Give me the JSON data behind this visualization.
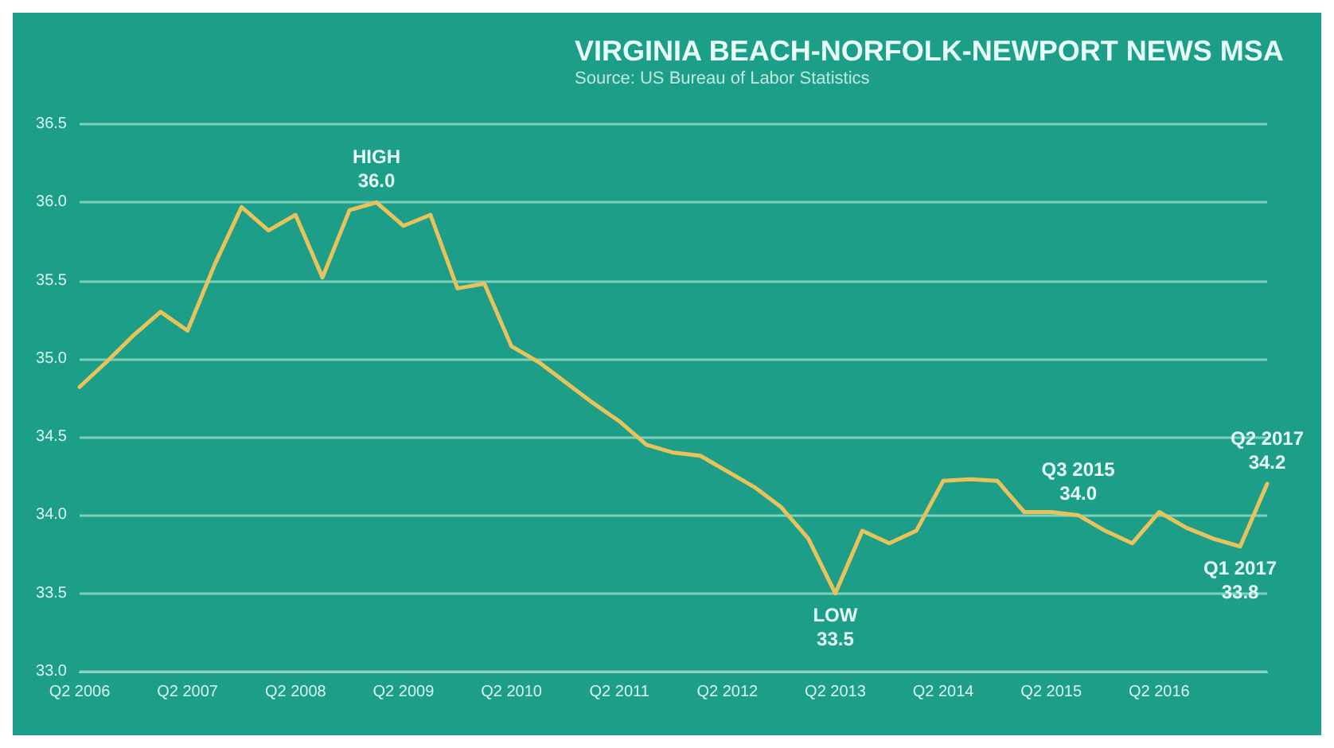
{
  "chart_data": {
    "type": "line",
    "title": "VIRGINIA BEACH-NORFOLK-NEWPORT NEWS MSA",
    "subtitle": "Source: US Bureau of Labor Statistics",
    "categories": [
      "Q2 2006",
      null,
      null,
      null,
      "Q2 2007",
      null,
      null,
      null,
      "Q2 2008",
      null,
      null,
      null,
      "Q2 2009",
      null,
      null,
      null,
      "Q2 2010",
      null,
      null,
      null,
      "Q2 2011",
      null,
      null,
      null,
      "Q2 2012",
      null,
      null,
      null,
      "Q2 2013",
      null,
      null,
      null,
      "Q2 2014",
      null,
      null,
      null,
      "Q2 2015",
      null,
      null,
      null,
      "Q2 2016",
      null,
      null,
      null,
      null
    ],
    "series": [
      {
        "color": "#e8c25a",
        "values": [
          34.82,
          34.98,
          35.15,
          35.3,
          35.18,
          35.6,
          35.97,
          35.82,
          35.92,
          35.52,
          35.95,
          36.0,
          35.85,
          35.92,
          35.45,
          35.48,
          35.08,
          34.98,
          34.85,
          34.72,
          34.6,
          34.45,
          34.4,
          34.38,
          34.28,
          34.18,
          34.05,
          33.85,
          33.5,
          33.9,
          33.82,
          33.9,
          34.22,
          34.23,
          34.22,
          34.02,
          34.02,
          34.0,
          33.9,
          33.82,
          34.02,
          33.92,
          33.85,
          33.8,
          34.2
        ]
      }
    ],
    "ylim": [
      33.0,
      36.5
    ],
    "yticks": [
      {
        "value": 33.0,
        "label": "33.0"
      },
      {
        "value": 33.5,
        "label": "33.5"
      },
      {
        "value": 34.0,
        "label": "34.0"
      },
      {
        "value": 34.5,
        "label": "34.5"
      },
      {
        "value": 35.0,
        "label": "35.0"
      },
      {
        "value": 35.5,
        "label": "35.5"
      },
      {
        "value": 36.0,
        "label": "36.0"
      },
      {
        "value": 36.5,
        "label": "36.5"
      }
    ],
    "grid": "y",
    "marker": "none",
    "line_style": "solid",
    "annotations": [
      {
        "text": "HIGH\n36.0",
        "y": 36.0
      },
      {
        "text": "LOW\n33.5",
        "y": 33.5
      },
      {
        "text": "Q3 2015\n34.0",
        "y": 34.0
      },
      {
        "text": "Q1 2017\n33.8",
        "y": 33.8
      },
      {
        "text": "Q2 2017\n34.2",
        "y": 34.2
      }
    ]
  }
}
